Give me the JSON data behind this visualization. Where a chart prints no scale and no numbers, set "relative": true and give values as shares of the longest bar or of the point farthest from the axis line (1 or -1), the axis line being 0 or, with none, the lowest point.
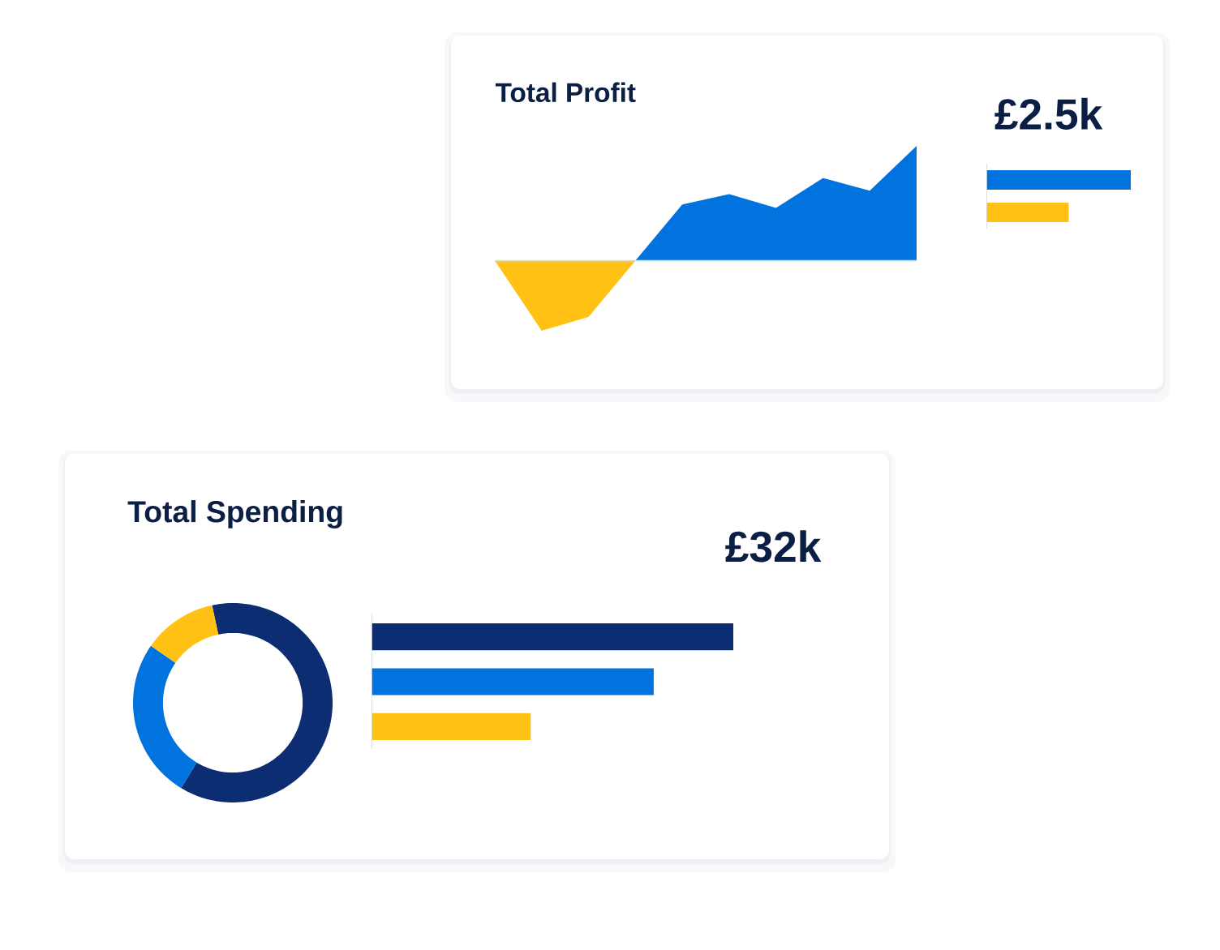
{
  "chart_data": [
    {
      "type": "area",
      "title": "Total Profit",
      "relative": true,
      "categories": [
        null,
        null,
        null,
        null,
        null,
        null,
        null,
        null,
        null,
        null
      ],
      "series": [
        {
          "color": "#ffc214",
          "values": [
            0,
            -0.61,
            -0.49,
            0,
            null,
            null,
            null,
            null,
            null,
            null
          ]
        },
        {
          "color": "#0073de",
          "values": [
            null,
            null,
            null,
            0,
            0.49,
            0.58,
            0.46,
            0.72,
            0.61,
            1
          ]
        }
      ]
    },
    {
      "type": "bar",
      "orientation": "horizontal",
      "relative": true,
      "title": "£2.5k",
      "categories": [
        null,
        null
      ],
      "values": [
        1,
        0.57
      ],
      "colors": [
        "#0073de",
        "#ffc214"
      ]
    },
    {
      "type": "donut",
      "title": "Total Spending",
      "categories": [
        null,
        null,
        null
      ],
      "values": [
        62,
        26,
        12
      ],
      "colors": [
        "#0d2d72",
        "#0073de",
        "#ffc214"
      ]
    },
    {
      "type": "bar",
      "orientation": "horizontal",
      "relative": true,
      "title": "£32k",
      "categories": [
        null,
        null,
        null
      ],
      "values": [
        1,
        0.78,
        0.44
      ],
      "colors": [
        "#0d2d72",
        "#0073de",
        "#ffc214"
      ]
    }
  ]
}
